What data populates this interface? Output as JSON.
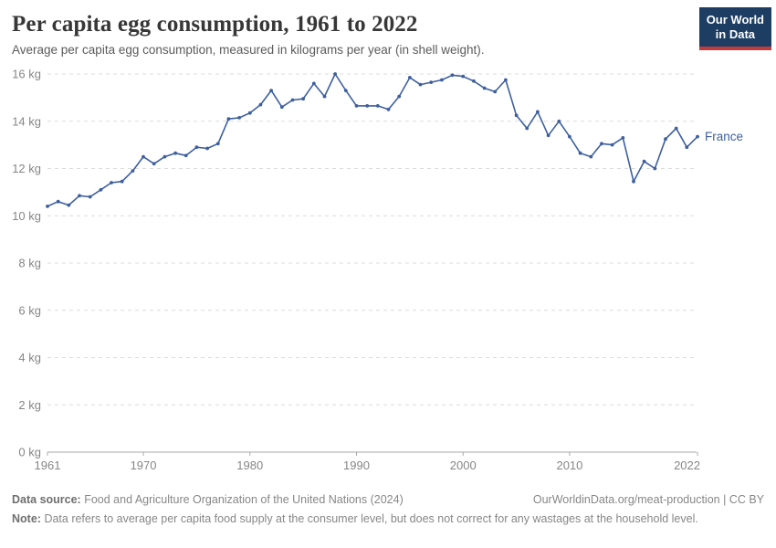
{
  "header": {
    "title": "Per capita egg consumption, 1961 to 2022",
    "subtitle": "Average per capita egg consumption, measured in kilograms per year (in shell weight).",
    "logo_line1": "Our World",
    "logo_line2": "in Data"
  },
  "chart_data": {
    "type": "line",
    "title": "Per capita egg consumption, 1961 to 2022",
    "xlabel": "",
    "ylabel": "",
    "ylim": [
      0,
      16
    ],
    "yticks": [
      0,
      2,
      4,
      6,
      8,
      10,
      12,
      14,
      16
    ],
    "ytick_suffix": " kg",
    "xticks": [
      1961,
      1970,
      1980,
      1990,
      2000,
      2010,
      2022
    ],
    "grid": "horizontal-dashed",
    "legend": "line-end-label",
    "x": [
      1961,
      1962,
      1963,
      1964,
      1965,
      1966,
      1967,
      1968,
      1969,
      1970,
      1971,
      1972,
      1973,
      1974,
      1975,
      1976,
      1977,
      1978,
      1979,
      1980,
      1981,
      1982,
      1983,
      1984,
      1985,
      1986,
      1987,
      1988,
      1989,
      1990,
      1991,
      1992,
      1993,
      1994,
      1995,
      1996,
      1997,
      1998,
      1999,
      2000,
      2001,
      2002,
      2003,
      2004,
      2005,
      2006,
      2007,
      2008,
      2009,
      2010,
      2011,
      2012,
      2013,
      2014,
      2015,
      2016,
      2017,
      2018,
      2019,
      2020,
      2021,
      2022
    ],
    "series": [
      {
        "name": "France",
        "color": "#3e5f9e",
        "values": [
          10.4,
          10.6,
          10.45,
          10.85,
          10.8,
          11.1,
          11.4,
          11.45,
          11.9,
          12.5,
          12.2,
          12.5,
          12.65,
          12.55,
          12.9,
          12.85,
          13.05,
          14.1,
          14.15,
          14.35,
          14.7,
          15.3,
          14.6,
          14.9,
          14.95,
          15.6,
          15.05,
          16.0,
          15.3,
          14.65,
          14.65,
          14.65,
          14.5,
          15.05,
          15.85,
          15.55,
          15.65,
          15.75,
          15.95,
          15.9,
          15.7,
          15.4,
          15.25,
          15.75,
          14.25,
          13.7,
          14.4,
          13.4,
          14.0,
          13.35,
          12.65,
          12.5,
          13.05,
          13.0,
          13.3,
          11.45,
          12.3,
          12.0,
          13.25,
          13.7,
          12.9,
          13.35
        ]
      }
    ]
  },
  "footer": {
    "datasource_label": "Data source:",
    "datasource": "Food and Agriculture Organization of the United Nations (2024)",
    "attribution": "OurWorldinData.org/meat-production | CC BY",
    "note_label": "Note:",
    "note": "Data refers to average per capita food supply at the consumer level, but does not correct for any wastages at the household level."
  },
  "colors": {
    "accent_blue": "#3e5f9e",
    "logo_navy": "#1d3d63",
    "logo_red": "#c43a3a",
    "grid": "#dcdcdc",
    "axis": "#a8a8a8",
    "tick_text": "#868686",
    "title_text": "#373737",
    "subtitle_text": "#5b5b5b",
    "footer_text": "#878787"
  }
}
